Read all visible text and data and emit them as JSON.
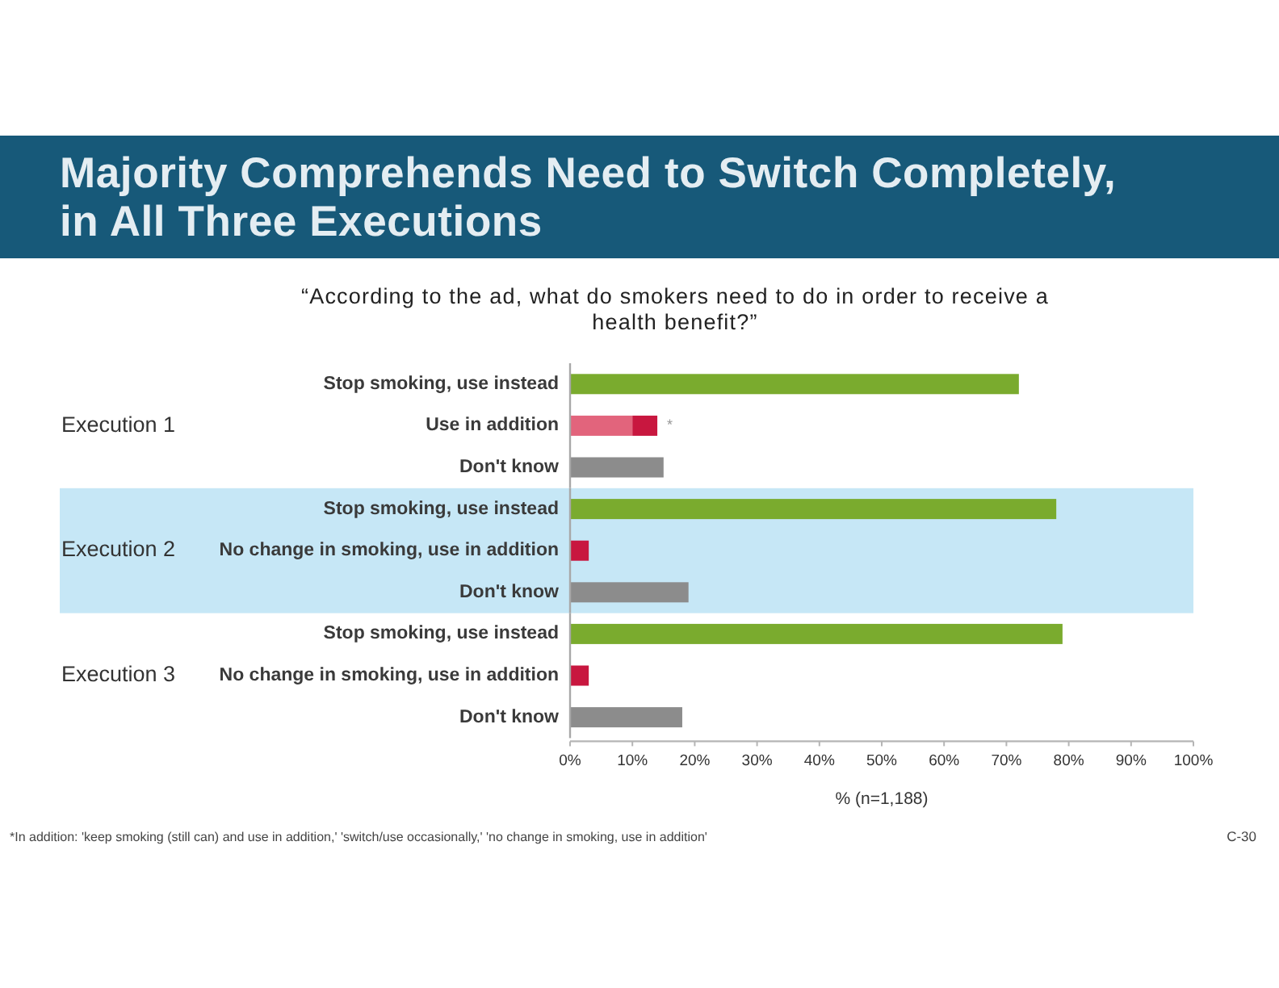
{
  "chart_data": [
    {
      "type": "bar",
      "orientation": "horizontal",
      "stacked": true,
      "title": "Majority Comprehends Need to Switch Completely,\nin All Three Executions",
      "subtitle": "“According to the ad, what do smokers need to do in order to receive a\nhealth benefit?”",
      "ylabel": "Execution 1",
      "categories": [
        "Stop smoking, use instead",
        "Use in addition",
        "Don't know"
      ],
      "series": [
        {
          "values": [
            72,
            10,
            15
          ],
          "colors": [
            "#7aab2e",
            "#e2647c",
            "#8c8c8c"
          ]
        },
        {
          "values": [
            null,
            4,
            null
          ],
          "color": "#c8173f"
        }
      ],
      "xlim": [
        0,
        100
      ],
      "tick_labels": "y",
      "annotations": [
        {
          "text": "*",
          "x": 14,
          "y": "Use in addition"
        }
      ]
    },
    {
      "type": "bar",
      "orientation": "horizontal",
      "ylabel": "Execution 2",
      "categories": [
        "Stop smoking, use instead",
        "No change in smoking, use in addition",
        "Don't know"
      ],
      "values": [
        78,
        3,
        19
      ],
      "colors": [
        "#7aab2e",
        "#c8173f",
        "#8c8c8c"
      ],
      "xlim": [
        0,
        100
      ],
      "tick_labels": "y",
      "bands": [
        {
          "axis": "y",
          "from": "Stop smoking, use instead",
          "to": "Don't know",
          "color": "#c6e7f6"
        }
      ]
    },
    {
      "type": "bar",
      "orientation": "horizontal",
      "ylabel": "Execution 3",
      "categories": [
        "Stop smoking, use instead",
        "No change in smoking, use in addition",
        "Don't know"
      ],
      "values": [
        79,
        3,
        18
      ],
      "colors": [
        "#7aab2e",
        "#c8173f",
        "#8c8c8c"
      ],
      "xlim": [
        0,
        100
      ],
      "xticks": [
        {
          "value": 0,
          "label": "0%"
        },
        {
          "value": 10,
          "label": "10%"
        },
        {
          "value": 20,
          "label": "20%"
        },
        {
          "value": 30,
          "label": "30%"
        },
        {
          "value": 40,
          "label": "40%"
        },
        {
          "value": 50,
          "label": "50%"
        },
        {
          "value": 60,
          "label": "60%"
        },
        {
          "value": 70,
          "label": "70%"
        },
        {
          "value": 80,
          "label": "80%"
        },
        {
          "value": 90,
          "label": "90%"
        },
        {
          "value": 100,
          "label": "100%"
        }
      ],
      "xlabel": "% (n=1,188)",
      "annotations": [
        "*In addition: 'keep smoking (still can) and use in addition,' 'switch/use occasionally,' 'no change in smoking, use in addition'",
        "C-30"
      ]
    }
  ]
}
